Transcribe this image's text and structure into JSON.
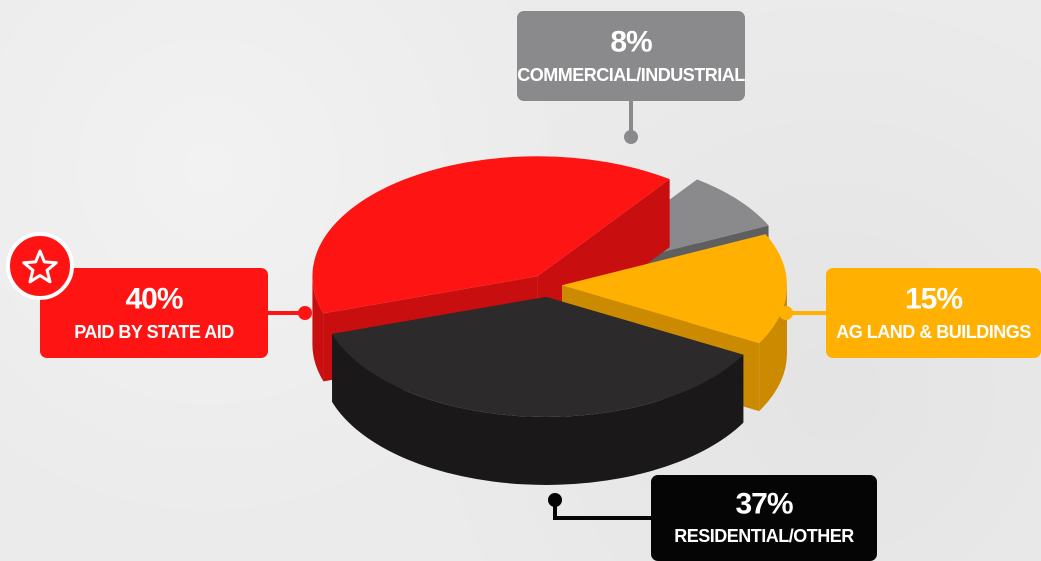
{
  "chart_data": {
    "type": "pie",
    "categories": [
      "PAID BY STATE AID",
      "COMMERCIAL/INDUSTRIAL",
      "AG LAND & BUILDINGS",
      "RESIDENTIAL/OTHER"
    ],
    "values": [
      40,
      8,
      15,
      37
    ],
    "value_labels": [
      "40%",
      "8%",
      "15%",
      "37%"
    ],
    "colors": [
      "#ff1414",
      "#8a8a8c",
      "#ffb000",
      "#2c2a2b"
    ],
    "side_colors": [
      "#c80e0e",
      "#5f5f61",
      "#cc8a00",
      "#1a1819"
    ],
    "label_colors": [
      "#ff1414",
      "#8a8a8c",
      "#ffb000",
      "#050505"
    ],
    "highlight_icon": "star-icon",
    "style": "3d-exploded"
  }
}
